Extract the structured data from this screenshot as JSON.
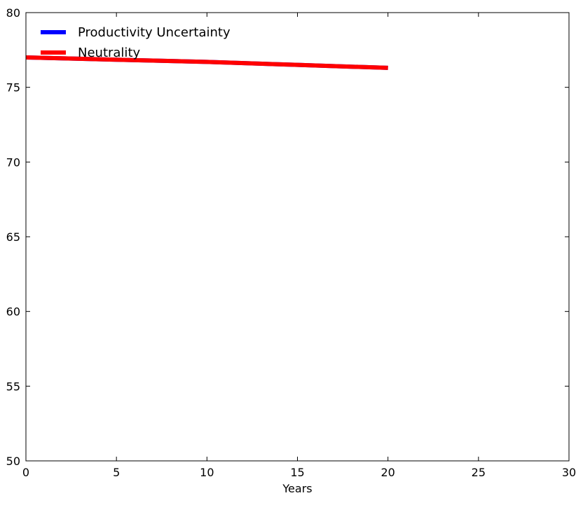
{
  "chart_data": {
    "type": "line",
    "title": "",
    "xlabel": "Years",
    "ylabel": "",
    "xlim": [
      0,
      30
    ],
    "ylim": [
      50,
      80
    ],
    "xticks": [
      0,
      5,
      10,
      15,
      20,
      25,
      30
    ],
    "yticks": [
      50,
      55,
      60,
      65,
      70,
      75,
      80
    ],
    "grid": false,
    "legend_position": "top-left",
    "series": [
      {
        "name": "Productivity Uncertainty",
        "color": "#0000ff",
        "x": [
          0,
          5,
          10,
          15,
          20
        ],
        "y": [
          77.0,
          76.85,
          76.7,
          76.5,
          76.3
        ]
      },
      {
        "name": "Neutrality",
        "color": "#ff0000",
        "x": [
          0,
          5,
          10,
          15,
          20
        ],
        "y": [
          77.0,
          76.85,
          76.7,
          76.5,
          76.3
        ]
      }
    ]
  }
}
